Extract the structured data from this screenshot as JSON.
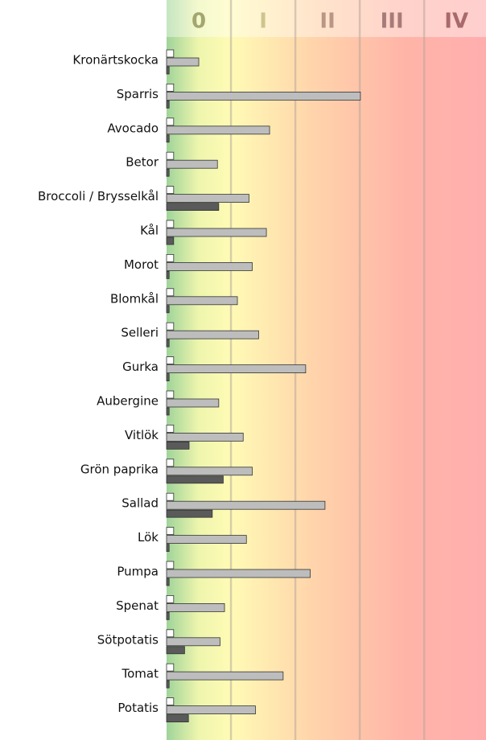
{
  "chart_data": {
    "type": "bar",
    "orientation": "horizontal",
    "categories": [
      "Kronärtskocka",
      "Sparris",
      "Avocado",
      "Betor",
      "Broccoli / Brysselkål",
      "Kål",
      "Morot",
      "Blomkål",
      "Selleri",
      "Gurka",
      "Aubergine",
      "Vitlök",
      "Grön paprika",
      "Sallad",
      "Lök",
      "Pumpa",
      "Spenat",
      "Sötpotatis",
      "Tomat",
      "Potatis"
    ],
    "series": [
      {
        "color": "#ffffff",
        "values": [
          0.11,
          0.11,
          0.11,
          0.11,
          0.11,
          0.11,
          0.11,
          0.11,
          0.11,
          0.11,
          0.11,
          0.11,
          0.11,
          0.11,
          0.11,
          0.11,
          0.11,
          0.11,
          0.11,
          0.11
        ]
      },
      {
        "color": "#bdbdbd",
        "values": [
          0.5,
          3.01,
          1.6,
          0.79,
          1.28,
          1.55,
          1.33,
          1.1,
          1.43,
          2.16,
          0.81,
          1.19,
          1.33,
          2.46,
          1.24,
          2.23,
          0.9,
          0.83,
          1.81,
          1.38
        ]
      },
      {
        "color": "#5a5a5a",
        "values": [
          0.04,
          0.04,
          0.04,
          0.04,
          0.81,
          0.11,
          0.04,
          0.04,
          0.04,
          0.04,
          0.04,
          0.35,
          0.88,
          0.71,
          0.04,
          0.04,
          0.04,
          0.28,
          0.04,
          0.34
        ]
      }
    ],
    "xlim": [
      0,
      4.96
    ],
    "xticks": [
      1,
      2,
      3,
      4
    ],
    "zones": [
      "0",
      "I",
      "II",
      "III",
      "IV"
    ],
    "zone_colors": [
      "#a3a66e",
      "#cdc48f",
      "#b99686",
      "#a87a78",
      "#a86a6a"
    ],
    "grid": true
  }
}
